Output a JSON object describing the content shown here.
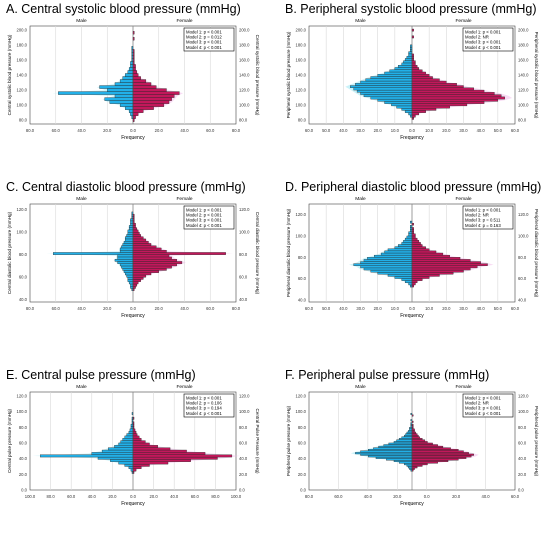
{
  "colors": {
    "male": "#22b0e8",
    "female": "#c2185b",
    "band_male": "#9fe8f4",
    "band_female": "#f1b8ea",
    "grid": "#d9d9d9",
    "edge": "#222222"
  },
  "chart_data": [
    {
      "type": "bar",
      "orientation": "horizontal-back-to-back",
      "title": "A. Central systolic blood pressure (mmHg)",
      "left_label": "Male",
      "right_label": "Female",
      "xlabel": "Frequency",
      "ylabel_left": "Central systolic blood pressure (mmHg)",
      "ylabel_right": "Central systolic blood pressure (mmHg)",
      "xlim": [
        -80,
        80
      ],
      "x_ticks": [
        "80.0",
        "60.0",
        "40.0",
        "20.0",
        "0.0",
        "20.0",
        "40.0",
        "60.0",
        "80.0"
      ],
      "ylim": [
        75,
        205
      ],
      "y_ticks": [
        "80.0",
        "100.0",
        "120.0",
        "140.0",
        "160.0",
        "180.0",
        "200.0"
      ],
      "legend": [
        "Model 1: p < 0.001",
        "Model 2: p = 0.012",
        "Model 3: p < 0.001",
        "Model 4: p < 0.001"
      ],
      "bin": [
        78,
        202,
        4
      ],
      "male": [
        0,
        1,
        2,
        3,
        6,
        10,
        18,
        22,
        14,
        58,
        20,
        26,
        14,
        10,
        8,
        6,
        4,
        3,
        2,
        2,
        1,
        1,
        1,
        1,
        1,
        0,
        0,
        0,
        0,
        0,
        0,
        0
      ],
      "female": [
        1,
        2,
        4,
        8,
        16,
        24,
        28,
        30,
        32,
        36,
        26,
        18,
        14,
        10,
        6,
        4,
        3,
        2,
        2,
        1,
        1,
        1,
        1,
        1,
        0,
        0,
        0,
        1,
        0,
        1,
        0,
        0
      ]
    },
    {
      "type": "bar",
      "orientation": "horizontal-back-to-back",
      "title": "B. Peripheral systolic blood pressure (mmHg)",
      "left_label": "Male",
      "right_label": "Female",
      "xlabel": "Frequency",
      "ylabel_left": "Peripheral systolic blood pressure (mmHg)",
      "ylabel_right": "Peripheral systolic blood pressure (mmHg)",
      "xlim": [
        -60,
        60
      ],
      "x_ticks": [
        "60.0",
        "50.0",
        "40.0",
        "30.0",
        "20.0",
        "10.0",
        "0.0",
        "10.0",
        "20.0",
        "30.0",
        "40.0",
        "50.0",
        "60.0"
      ],
      "ylim": [
        75,
        205
      ],
      "y_ticks": [
        "80.0",
        "100.0",
        "120.0",
        "140.0",
        "160.0",
        "180.0",
        "200.0"
      ],
      "legend": [
        "Model 1: p < 0.001",
        "Model 2: NR",
        "Model 3: p < 0.001",
        "Model 4: p < 0.001"
      ],
      "bin": [
        78,
        202,
        3
      ],
      "male": [
        0,
        0,
        1,
        2,
        4,
        6,
        9,
        12,
        16,
        20,
        24,
        28,
        30,
        32,
        34,
        36,
        33,
        30,
        27,
        24,
        20,
        16,
        13,
        10,
        8,
        6,
        5,
        4,
        3,
        2,
        2,
        1,
        1,
        1,
        0,
        0,
        0,
        0,
        0,
        0,
        0,
        0
      ],
      "female": [
        0,
        1,
        2,
        4,
        8,
        14,
        22,
        32,
        42,
        50,
        54,
        52,
        48,
        42,
        36,
        30,
        26,
        20,
        16,
        12,
        10,
        8,
        6,
        4,
        3,
        2,
        2,
        1,
        1,
        1,
        0,
        0,
        0,
        0,
        0,
        0,
        0,
        1,
        0,
        0,
        1,
        0
      ]
    },
    {
      "type": "bar",
      "orientation": "horizontal-back-to-back",
      "title": "C. Central diastolic blood pressure (mmHg)",
      "left_label": "Male",
      "right_label": "Female",
      "xlabel": "Frequency",
      "ylabel_left": "Central diastolic blood pressure (mmHg)",
      "ylabel_right": "Central diastolic blood pressure (mmHg)",
      "xlim": [
        -80,
        80
      ],
      "x_ticks": [
        "80.0",
        "60.0",
        "40.0",
        "20.0",
        "0.0",
        "20.0",
        "40.0",
        "60.0",
        "80.0"
      ],
      "ylim": [
        38,
        125
      ],
      "y_ticks": [
        "40.0",
        "60.0",
        "80.0",
        "100.0",
        "120.0"
      ],
      "legend": [
        "Model 1: p < 0.001",
        "Model 2: p < 0.001",
        "Model 3: p < 0.001",
        "Model 4: p < 0.001"
      ],
      "bin": [
        48,
        118,
        2
      ],
      "male": [
        1,
        2,
        2,
        3,
        4,
        4,
        5,
        6,
        7,
        8,
        9,
        10,
        12,
        14,
        12,
        12,
        62,
        10,
        10,
        9,
        8,
        7,
        6,
        6,
        5,
        4,
        4,
        3,
        3,
        2,
        2,
        2,
        1,
        1,
        1
      ],
      "female": [
        1,
        2,
        3,
        4,
        6,
        8,
        10,
        14,
        20,
        26,
        30,
        34,
        38,
        34,
        30,
        28,
        72,
        26,
        22,
        18,
        14,
        12,
        10,
        8,
        6,
        5,
        4,
        3,
        2,
        2,
        1,
        1,
        1,
        1,
        0
      ]
    },
    {
      "type": "bar",
      "orientation": "horizontal-back-to-back",
      "title": "D. Peripheral diastolic blood pressure (mmHg)",
      "left_label": "Male",
      "right_label": "Female",
      "xlabel": "Frequency",
      "ylabel_left": "Peripheral diastolic blood pressure (mmHg)",
      "ylabel_right": "Peripheral diastolic blood pressure (mmHg)",
      "xlim": [
        -60,
        60
      ],
      "x_ticks": [
        "60.0",
        "50.0",
        "40.0",
        "30.0",
        "20.0",
        "10.0",
        "0.0",
        "10.0",
        "20.0",
        "30.0",
        "40.0",
        "50.0",
        "60.0"
      ],
      "ylim": [
        38,
        130
      ],
      "y_ticks": [
        "40.0",
        "60.0",
        "80.0",
        "100.0",
        "120.0"
      ],
      "legend": [
        "Model 1: p < 0.001",
        "Model 2: NR",
        "Model 3: p = 0.511",
        "Model 4: p = 0.163"
      ],
      "bin": [
        50,
        120,
        2
      ],
      "male": [
        0,
        1,
        2,
        4,
        6,
        10,
        14,
        20,
        24,
        28,
        30,
        34,
        30,
        28,
        26,
        22,
        18,
        16,
        14,
        10,
        8,
        6,
        5,
        4,
        3,
        2,
        2,
        1,
        1,
        1,
        0,
        1,
        0,
        0,
        0
      ],
      "female": [
        0,
        1,
        2,
        3,
        6,
        10,
        16,
        24,
        30,
        34,
        38,
        44,
        40,
        34,
        28,
        22,
        18,
        14,
        10,
        8,
        6,
        5,
        4,
        3,
        2,
        2,
        1,
        1,
        1,
        0,
        1,
        0,
        0,
        0,
        0
      ]
    },
    {
      "type": "bar",
      "orientation": "horizontal-back-to-back",
      "title": "E. Central pulse pressure (mmHg)",
      "left_label": "Male",
      "right_label": "Female",
      "xlabel": "Frequency",
      "ylabel_left": "Central pulse pressure (mmHg)",
      "ylabel_right": "Central Pulse Pressure (mmHg)",
      "xlim": [
        -100,
        100
      ],
      "x_ticks": [
        "100.0",
        "80.0",
        "60.0",
        "40.0",
        "20.0",
        "0.0",
        "20.0",
        "40.0",
        "60.0",
        "80.0",
        "100.0"
      ],
      "ylim": [
        0,
        125
      ],
      "y_ticks": [
        "0.0",
        "20.0",
        "40.0",
        "60.0",
        "80.0",
        "100.0",
        "120.0"
      ],
      "legend": [
        "Model 1: p < 0.001",
        "Model 2: p = 0.106",
        "Model 3: p = 0.194",
        "Model 4: p < 0.001"
      ],
      "bin": [
        18,
        98,
        3
      ],
      "male": [
        0,
        1,
        2,
        4,
        8,
        14,
        22,
        34,
        90,
        40,
        30,
        24,
        18,
        14,
        12,
        10,
        8,
        6,
        4,
        3,
        2,
        2,
        1,
        1,
        1,
        0,
        1
      ],
      "female": [
        0,
        1,
        3,
        8,
        16,
        34,
        56,
        82,
        96,
        70,
        52,
        36,
        24,
        16,
        12,
        8,
        6,
        4,
        3,
        2,
        1,
        1,
        1,
        0,
        1,
        0,
        0
      ]
    },
    {
      "type": "bar",
      "orientation": "horizontal-back-to-back",
      "title": "F. Peripheral pulse pressure (mmHg)",
      "left_label": "Male",
      "right_label": "Female",
      "xlabel": "Frequency",
      "ylabel_left": "Peripheral pulse pressure (mmHg)",
      "ylabel_right": "Peripheral pulse pressure (mmHg)",
      "xlim": [
        -80,
        80
      ],
      "x_ticks": [
        "80.0",
        "60.0",
        "40.0",
        "20.0",
        "0.0",
        "20.0",
        "40.0",
        "60.0"
      ],
      "ylim": [
        0,
        125
      ],
      "y_ticks": [
        "0.0",
        "20.0",
        "40.0",
        "60.0",
        "80.0",
        "100.0",
        "120.0"
      ],
      "legend": [
        "Model 1: p < 0.001",
        "Model 2: NR",
        "Model 3: p < 0.001",
        "Model 4: p < 0.001"
      ],
      "bin": [
        22,
        100,
        2
      ],
      "male": [
        0,
        1,
        2,
        3,
        4,
        6,
        10,
        14,
        20,
        28,
        34,
        40,
        44,
        40,
        34,
        30,
        26,
        22,
        18,
        14,
        12,
        10,
        8,
        6,
        5,
        4,
        3,
        2,
        2,
        1,
        1,
        1,
        0,
        1,
        0,
        0,
        0,
        1,
        0,
        0
      ],
      "female": [
        0,
        1,
        2,
        4,
        8,
        12,
        20,
        28,
        36,
        42,
        46,
        48,
        44,
        40,
        36,
        30,
        24,
        20,
        16,
        12,
        10,
        8,
        6,
        5,
        4,
        3,
        2,
        2,
        1,
        1,
        1,
        0,
        1,
        0,
        0,
        0,
        1,
        0,
        0,
        0
      ]
    }
  ]
}
